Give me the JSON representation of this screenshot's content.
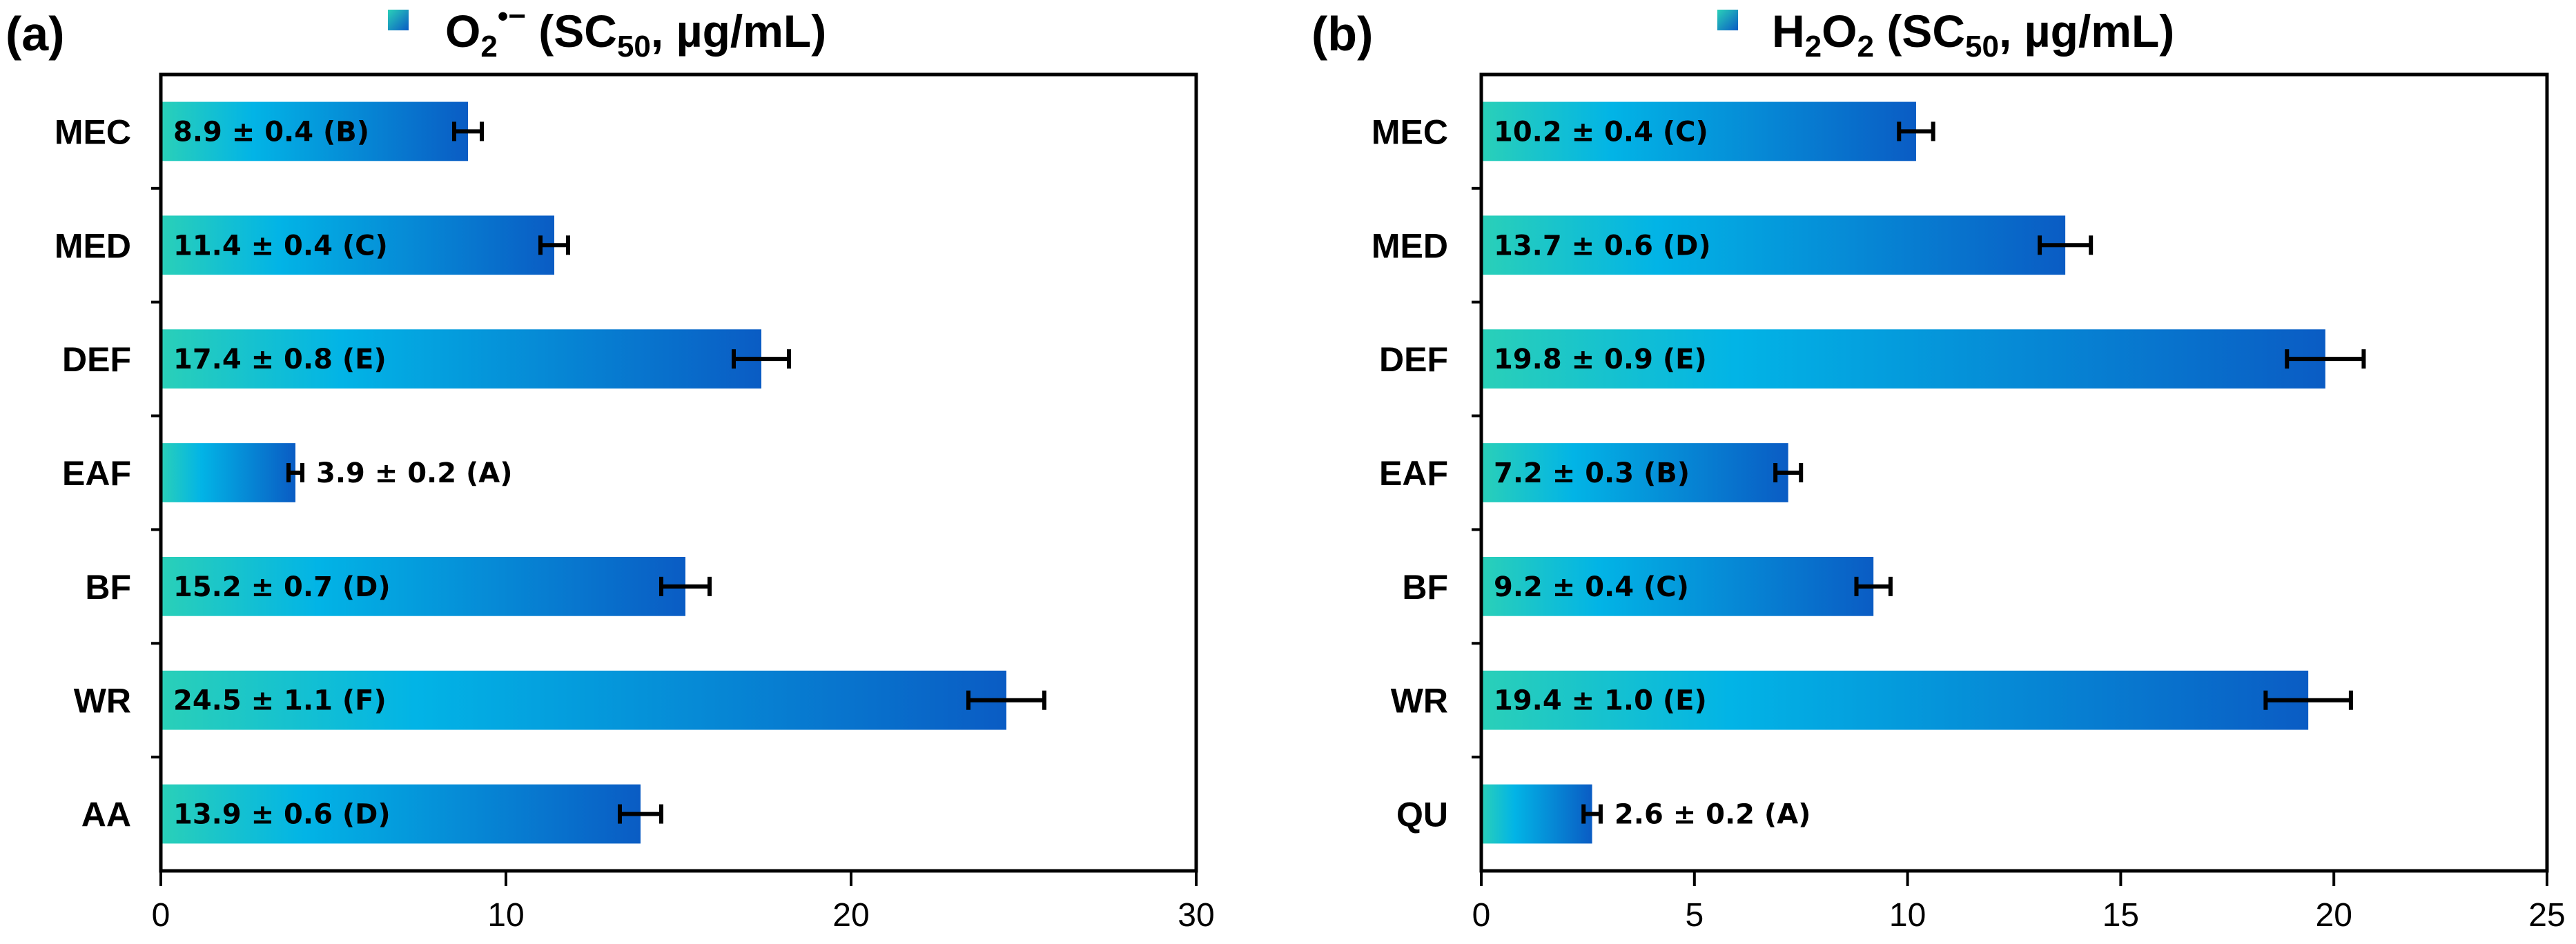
{
  "chart_data": [
    {
      "type": "bar",
      "orientation": "horizontal",
      "panel": "(a)",
      "legend": {
        "main": "O",
        "sub1": "2",
        "sup": "•−",
        "mid": " (SC",
        "sub2": "50",
        "tail": ", µg/mL)"
      },
      "categories": [
        "MEC",
        "MED",
        "DEF",
        "EAF",
        "BF",
        "WR",
        "AA"
      ],
      "values": [
        8.9,
        11.4,
        17.4,
        3.9,
        15.2,
        24.5,
        13.9
      ],
      "errors": [
        0.4,
        0.4,
        0.8,
        0.2,
        0.7,
        1.1,
        0.6
      ],
      "bar_labels": [
        "8.9 ± 0.4 (B)",
        "11.4 ± 0.4 (C)",
        "17.4 ± 0.8  (E)",
        "3.9 ± 0.2 (A)",
        "15.2 ± 0.7 (D)",
        "24.5 ± 1.1 (F)",
        "13.9 ± 0.6 (D)"
      ],
      "xlim": [
        0,
        30
      ],
      "xticks": [
        0,
        10,
        20,
        30
      ],
      "xlabel": "",
      "ylabel": "",
      "gradient": [
        "#2ad0b8",
        "#02b4e6",
        "#0a5cc4"
      ]
    },
    {
      "type": "bar",
      "orientation": "horizontal",
      "panel": "(b)",
      "legend": {
        "main": "H",
        "sub1": "2",
        "sup": "",
        "mid": "O",
        "sub2": "2",
        "tail": " (SC",
        "sub3": "50",
        "tail2": ", µg/mL)"
      },
      "categories": [
        "MEC",
        "MED",
        "DEF",
        "EAF",
        "BF",
        "WR",
        "QU"
      ],
      "values": [
        10.2,
        13.7,
        19.8,
        7.2,
        9.2,
        19.4,
        2.6
      ],
      "errors": [
        0.4,
        0.6,
        0.9,
        0.3,
        0.4,
        1.0,
        0.2
      ],
      "bar_labels": [
        "10.2 ± 0.4 (C)",
        "13.7 ± 0.6 (D)",
        "19.8 ± 0.9 (E)",
        "7.2 ± 0.3 (B)",
        "9.2 ± 0.4 (C)",
        "19.4 ± 1.0 (E)",
        "2.6 ± 0.2 (A)"
      ],
      "xlim": [
        0,
        25
      ],
      "xticks": [
        0,
        5,
        10,
        15,
        20,
        25
      ],
      "xlabel": "",
      "ylabel": "",
      "gradient": [
        "#2ad0b8",
        "#02b4e6",
        "#0a5cc4"
      ]
    }
  ]
}
